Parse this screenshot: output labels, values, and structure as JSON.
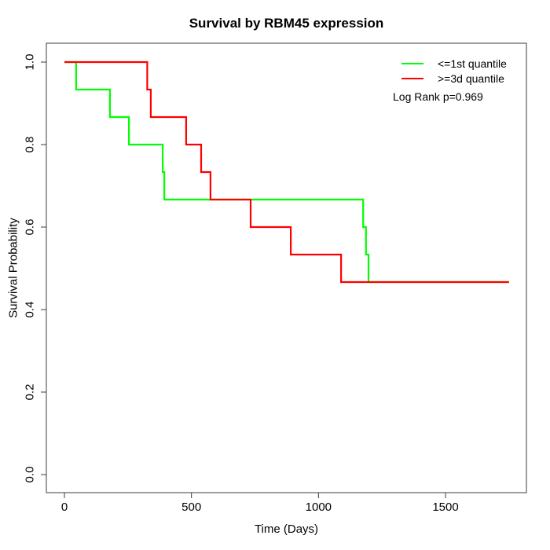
{
  "title": "Survival by RBM45 expression",
  "chart_data": {
    "type": "line",
    "subtype": "kaplan-meier-step",
    "title": "Survival by RBM45 expression",
    "xlabel": "Time (Days)",
    "ylabel": "Survival Probability",
    "xlim": [
      0,
      1750
    ],
    "ylim": [
      0,
      1.04
    ],
    "xticks": [
      "0",
      "500",
      "1000",
      "1500"
    ],
    "xtick_values": [
      0,
      500,
      1000,
      1500
    ],
    "yticks": [
      "0.0",
      "0.2",
      "0.4",
      "0.6",
      "0.8",
      "1.0"
    ],
    "ytick_values": [
      0,
      0.2,
      0.4,
      0.6,
      0.8,
      1.0
    ],
    "grid": false,
    "legend_position": "top-right",
    "annotation": "Log Rank p=0.969",
    "axis_color": "#3c3c3c",
    "series": [
      {
        "name": "<=1st quantile",
        "color": "#00ff00",
        "step_points": [
          [
            0,
            1
          ],
          [
            46,
            1
          ],
          [
            46,
            0.9333
          ],
          [
            179,
            0.9333
          ],
          [
            179,
            0.8667
          ],
          [
            254,
            0.8667
          ],
          [
            254,
            0.8
          ],
          [
            387,
            0.8
          ],
          [
            387,
            0.7333
          ],
          [
            393,
            0.7333
          ],
          [
            393,
            0.6667
          ],
          [
            1176,
            0.6667
          ],
          [
            1176,
            0.6
          ],
          [
            1187,
            0.6
          ],
          [
            1187,
            0.5333
          ],
          [
            1197,
            0.5333
          ],
          [
            1197,
            0.4667
          ],
          [
            1750,
            0.4667
          ]
        ]
      },
      {
        "name": ">=3d quantile",
        "color": "#ff0000",
        "step_points": [
          [
            0,
            1
          ],
          [
            326,
            1
          ],
          [
            326,
            0.9333
          ],
          [
            340,
            0.9333
          ],
          [
            340,
            0.8667
          ],
          [
            479,
            0.8667
          ],
          [
            479,
            0.8
          ],
          [
            538,
            0.8
          ],
          [
            538,
            0.7333
          ],
          [
            575,
            0.7333
          ],
          [
            575,
            0.6667
          ],
          [
            733,
            0.6667
          ],
          [
            733,
            0.6
          ],
          [
            891,
            0.6
          ],
          [
            891,
            0.5333
          ],
          [
            1089,
            0.5333
          ],
          [
            1089,
            0.4667
          ],
          [
            1750,
            0.4667
          ]
        ]
      }
    ]
  }
}
